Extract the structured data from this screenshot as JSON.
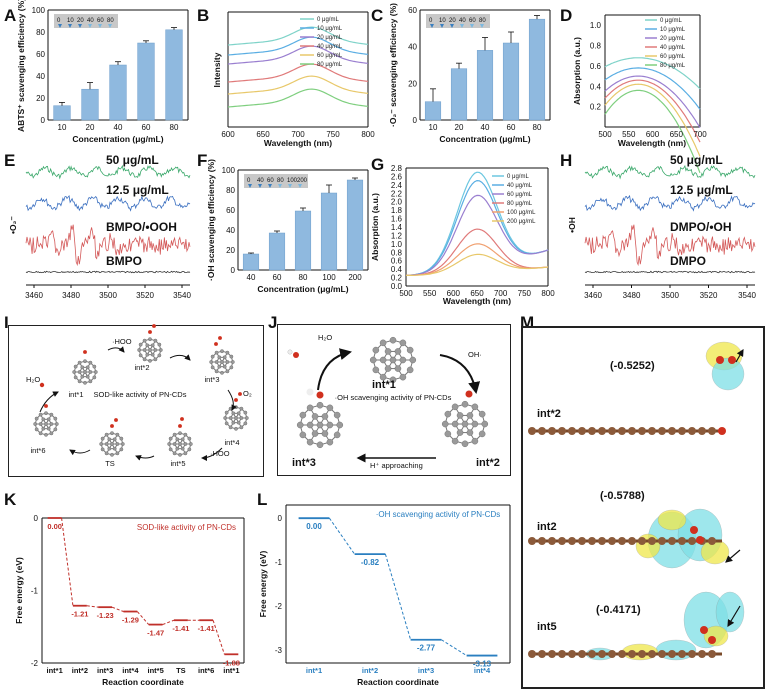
{
  "panel_letters": [
    "A",
    "B",
    "C",
    "D",
    "E",
    "F",
    "G",
    "H",
    "I",
    "J",
    "K",
    "L",
    "M"
  ],
  "chart_data": [
    {
      "id": "A",
      "type": "bar",
      "title": "",
      "xlabel": "Concentration (μg/mL)",
      "ylabel": "ABTS⁺ scavenging efficiency (%)",
      "categories": [
        "10",
        "20",
        "40",
        "60",
        "80"
      ],
      "values": [
        13,
        28,
        50,
        70,
        82
      ],
      "errors": [
        3,
        6,
        3,
        2,
        2
      ],
      "ylim": [
        0,
        100
      ],
      "yticks": [
        0,
        20,
        40,
        60,
        80,
        100
      ],
      "inset_labels": [
        "0",
        "10",
        "20",
        "40",
        "60",
        "80"
      ]
    },
    {
      "id": "B",
      "type": "line",
      "xlabel": "Wavelength (nm)",
      "ylabel": "Intensity",
      "xlim": [
        600,
        800
      ],
      "xticks": [
        600,
        650,
        700,
        750,
        800
      ],
      "legend": [
        "0 μg/mL",
        "10 μg/mL",
        "20 μg/mL",
        "40 μg/mL",
        "60 μg/mL",
        "80 μg/mL"
      ],
      "colors": [
        "#7fd3c9",
        "#5aaee3",
        "#9a7fd0",
        "#e07a7a",
        "#e8c86a",
        "#7fcf7f"
      ],
      "offsets": [
        0.82,
        0.72,
        0.63,
        0.45,
        0.33,
        0.2
      ]
    },
    {
      "id": "C",
      "type": "bar",
      "xlabel": "Concentration (μg/mL)",
      "ylabel": "·O₂⁻ scavenging efficiency (%)",
      "categories": [
        "10",
        "20",
        "40",
        "60",
        "80"
      ],
      "values": [
        10,
        28,
        38,
        42,
        55
      ],
      "errors": [
        7,
        3,
        7,
        6,
        2
      ],
      "ylim": [
        0,
        60
      ],
      "yticks": [
        0,
        20,
        40,
        60
      ],
      "inset_labels": [
        "0",
        "10",
        "20",
        "40",
        "60",
        "80"
      ]
    },
    {
      "id": "D",
      "type": "line",
      "xlabel": "Wavelength (nm)",
      "ylabel": "Absorption (a.u.)",
      "xlim": [
        500,
        700
      ],
      "xticks": [
        500,
        550,
        600,
        650,
        700
      ],
      "ylim": [
        0,
        1.1
      ],
      "yticks": [
        "0.2",
        "0.4",
        "0.6",
        "0.8",
        "1.0"
      ],
      "legend": [
        "0 μg/mL",
        "10 μg/mL",
        "20 μg/mL",
        "40 μg/mL",
        "60 μg/mL",
        "80 μg/mL"
      ],
      "colors": [
        "#7fd3c9",
        "#5aaee3",
        "#9a7fd0",
        "#e07a7a",
        "#e8c86a",
        "#7fcf7f"
      ],
      "peaks": [
        0.68,
        0.58,
        0.5,
        0.46,
        0.42,
        0.36
      ]
    },
    {
      "id": "E",
      "type": "epr",
      "ylabel": "•O₂⁻",
      "xticks": [
        3460,
        3480,
        3500,
        3520,
        3540
      ],
      "traces": [
        "50 μg/mL",
        "12.5 μg/mL",
        "BMPO/•OOH",
        "BMPO"
      ],
      "colors": [
        "#3aa86a",
        "#3a6fc0",
        "#d45a5a",
        "#333333"
      ]
    },
    {
      "id": "F",
      "type": "bar",
      "xlabel": "Concentration (μg/mL)",
      "ylabel": "·OH scavenging efficiency (%)",
      "categories": [
        "40",
        "60",
        "80",
        "100",
        "200"
      ],
      "values": [
        16,
        37,
        59,
        77,
        90
      ],
      "errors": [
        1,
        2,
        3,
        8,
        2
      ],
      "ylim": [
        0,
        100
      ],
      "yticks": [
        0,
        20,
        40,
        60,
        80,
        100
      ],
      "inset_labels": [
        "0",
        "40",
        "60",
        "80",
        "100",
        "200"
      ]
    },
    {
      "id": "G",
      "type": "line",
      "xlabel": "Wavelength (nm)",
      "ylabel": "Absorption (a.u.)",
      "xlim": [
        500,
        800
      ],
      "xticks": [
        500,
        550,
        600,
        650,
        700,
        750,
        800
      ],
      "ylim": [
        0,
        2.8
      ],
      "yticks": [
        "0.0",
        "0.2",
        "0.4",
        "0.6",
        "0.8",
        "1.0",
        "1.2",
        "1.4",
        "1.6",
        "1.8",
        "2.0",
        "2.2",
        "2.4",
        "2.6",
        "2.8"
      ],
      "legend": [
        "0 μg/mL",
        "40 μg/mL",
        "60 μg/mL",
        "80 μg/mL",
        "100 μg/mL",
        "200 μg/mL"
      ],
      "colors": [
        "#6cc7e0",
        "#5aaee3",
        "#9a7fd0",
        "#e07a7a",
        "#f0a070",
        "#e8c86a"
      ],
      "peaks": [
        2.55,
        2.35,
        2.0,
        1.3,
        0.95,
        0.7
      ]
    },
    {
      "id": "H",
      "type": "epr",
      "ylabel": "•OH",
      "xticks": [
        3460,
        3480,
        3500,
        3520,
        3540
      ],
      "traces": [
        "50 μg/mL",
        "12.5 μg/mL",
        "DMPO/•OH",
        "DMPO"
      ],
      "colors": [
        "#3aa86a",
        "#3a6fc0",
        "#d45a5a",
        "#333333"
      ]
    },
    {
      "id": "K",
      "type": "line",
      "title": "SOD-like activity of PN-CDs",
      "xlabel": "Reaction coordinate",
      "ylabel": "Free energy (eV)",
      "categories": [
        "int*1",
        "int*2",
        "int*3",
        "int*4",
        "int*5",
        "TS",
        "int*6",
        "int*1"
      ],
      "values": [
        0.0,
        -1.21,
        -1.23,
        -1.29,
        -1.47,
        -1.41,
        -1.41,
        -1.88
      ],
      "value_labels": [
        "0.00",
        "-1.21",
        "-1.23",
        "-1.29",
        "-1.47",
        "-1.41",
        "-1.41",
        "-1.88"
      ],
      "ylim": [
        -2,
        0
      ],
      "yticks": [
        "0",
        "-1",
        "-2"
      ]
    },
    {
      "id": "L",
      "type": "line",
      "title": "·OH scavenging activity of PN-CDs",
      "xlabel": "Reaction coordinate",
      "ylabel": "Free energy (eV)",
      "categories": [
        "int*1",
        "int*2",
        "int*3",
        "int*4"
      ],
      "values": [
        0.0,
        -0.82,
        -2.77,
        -3.13
      ],
      "value_labels": [
        "0.00",
        "-0.82",
        "-2.77",
        "-3.13"
      ],
      "ylim": [
        -3.3,
        0.3
      ],
      "yticks": [
        "0",
        "-1",
        "-2",
        "-3"
      ]
    }
  ],
  "I": {
    "center": "SOD-like activity of PN-CDs",
    "states": [
      "int*1",
      "int*2",
      "int*3",
      "int*4",
      "int*5",
      "TS",
      "int*6"
    ],
    "arrows": [
      "·HOO",
      "O₂",
      "·HOO",
      "H₂O"
    ]
  },
  "J": {
    "center": "·OH scavenging activity of PN-CDs",
    "states": [
      "int*1",
      "int*2",
      "int*3"
    ],
    "arrows": [
      "OH·",
      "H⁺ approaching",
      "H₂O"
    ]
  },
  "M": {
    "labels": [
      "int*2",
      "int2",
      "int5"
    ],
    "charges": [
      "(-0.5252)",
      "(-0.5788)",
      "(-0.4171)"
    ]
  }
}
